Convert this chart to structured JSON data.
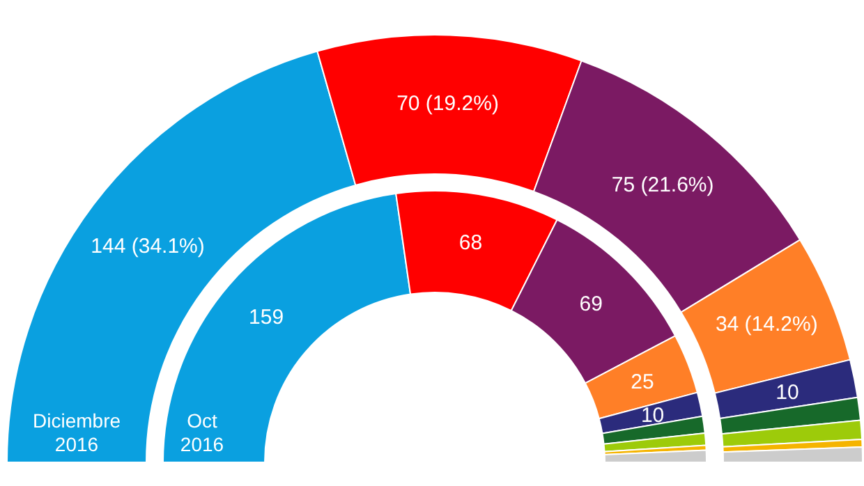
{
  "chart_data": [
    {
      "type": "donut",
      "title": "Diciembre 2016",
      "categories": [
        null,
        null,
        null,
        null,
        null,
        null,
        null,
        null,
        null
      ],
      "values": [
        144,
        70,
        75,
        34,
        10,
        6,
        5,
        2,
        4
      ],
      "colors": [
        "#0aa0e0",
        "#ff0000",
        "#7b1a63",
        "#ff7f27",
        "#2b2b7c",
        "#17692a",
        "#9dcb0a",
        "#f5b400",
        "#cccccc"
      ],
      "value_labels": [
        "144 (34.1%)",
        "70 (19.2%)",
        "75 (21.6%)",
        "34 (14.2%)",
        "10",
        null,
        null,
        null,
        null
      ]
    },
    {
      "type": "donut",
      "title": "Oct 2016",
      "categories": [
        null,
        null,
        null,
        null,
        null,
        null,
        null,
        null,
        null
      ],
      "values": [
        159,
        68,
        69,
        25,
        10,
        7,
        5,
        2,
        5
      ],
      "colors": [
        "#0aa0e0",
        "#ff0000",
        "#7b1a63",
        "#ff7f27",
        "#2b2b7c",
        "#17692a",
        "#9dcb0a",
        "#f5b400",
        "#cccccc"
      ],
      "value_labels": [
        "159",
        "68",
        "69",
        "25",
        "10",
        null,
        null,
        null,
        null
      ]
    }
  ]
}
